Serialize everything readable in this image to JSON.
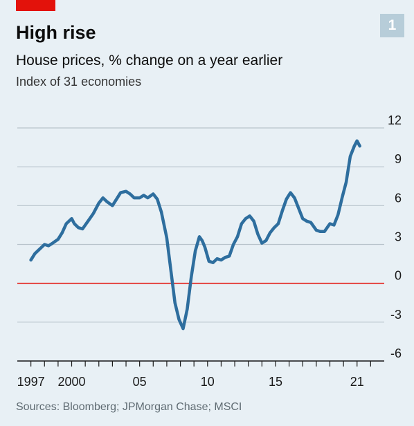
{
  "header": {
    "title": "High rise",
    "badge": "1",
    "subtitle": "House prices, % change on a year earlier",
    "subsubtitle": "Index of 31 economies"
  },
  "footer": {
    "source": "Sources: Bloomberg; JPMorgan Chase; MSCI"
  },
  "colors": {
    "line": "#2e6e9e",
    "zero_line": "#e3120b",
    "grid": "#b9c4cc",
    "background": "#e8f0f5",
    "accent": "#e3120b"
  },
  "chart_data": {
    "type": "line",
    "title": "House prices, % change on a year earlier",
    "subtitle": "Index of 31 economies",
    "xlim": [
      1996.0,
      2023.0
    ],
    "ylim": [
      -6,
      12
    ],
    "yticks": [
      12,
      9,
      6,
      3,
      0,
      -3,
      -6
    ],
    "ytick_labels": [
      "12",
      "9",
      "6",
      "3",
      "0",
      "-3",
      "-6"
    ],
    "xticks": [
      1997,
      2000,
      2005,
      2010,
      2015,
      2021
    ],
    "xtick_labels": [
      "1997",
      "2000",
      "05",
      "10",
      "15",
      "21"
    ],
    "grid": true,
    "zero_line": true,
    "series": [
      {
        "x": [
          1997.0,
          1997.3,
          1997.6,
          1998.0,
          1998.3,
          1998.6,
          1999.0,
          1999.3,
          1999.6,
          2000.0,
          2000.2,
          2000.5,
          2000.8,
          2001.2,
          2001.6,
          2002.0,
          2002.3,
          2002.6,
          2003.0,
          2003.3,
          2003.6,
          2004.0,
          2004.3,
          2004.6,
          2005.0,
          2005.3,
          2005.6,
          2006.0,
          2006.3,
          2006.6,
          2007.0,
          2007.3,
          2007.6,
          2007.9,
          2008.2,
          2008.5,
          2008.8,
          2009.1,
          2009.4,
          2009.6,
          2009.8,
          2010.1,
          2010.4,
          2010.7,
          2011.0,
          2011.3,
          2011.6,
          2011.9,
          2012.2,
          2012.5,
          2012.8,
          2013.1,
          2013.4,
          2013.7,
          2014.0,
          2014.3,
          2014.6,
          2014.9,
          2015.2,
          2015.5,
          2015.8,
          2016.1,
          2016.4,
          2016.7,
          2017.0,
          2017.3,
          2017.6,
          2018.0,
          2018.3,
          2018.6,
          2019.0,
          2019.3,
          2019.6,
          2019.9,
          2020.2,
          2020.5,
          2020.8,
          2021.0,
          2021.2
        ],
        "y": [
          1.8,
          2.3,
          2.6,
          3.0,
          2.9,
          3.1,
          3.4,
          3.9,
          4.6,
          5.0,
          4.6,
          4.3,
          4.2,
          4.8,
          5.4,
          6.2,
          6.6,
          6.3,
          6.0,
          6.5,
          7.0,
          7.1,
          6.9,
          6.6,
          6.6,
          6.8,
          6.6,
          6.9,
          6.5,
          5.5,
          3.5,
          1.0,
          -1.5,
          -2.8,
          -3.5,
          -2.0,
          0.5,
          2.5,
          3.6,
          3.3,
          2.8,
          1.7,
          1.6,
          1.9,
          1.8,
          2.0,
          2.1,
          3.0,
          3.6,
          4.6,
          5.0,
          5.2,
          4.8,
          3.8,
          3.1,
          3.3,
          3.9,
          4.3,
          4.6,
          5.6,
          6.5,
          7.0,
          6.6,
          5.8,
          5.0,
          4.8,
          4.7,
          4.1,
          4.0,
          4.0,
          4.6,
          4.5,
          5.3,
          6.6,
          7.8,
          9.8,
          10.6,
          11.0,
          10.6
        ]
      }
    ]
  }
}
